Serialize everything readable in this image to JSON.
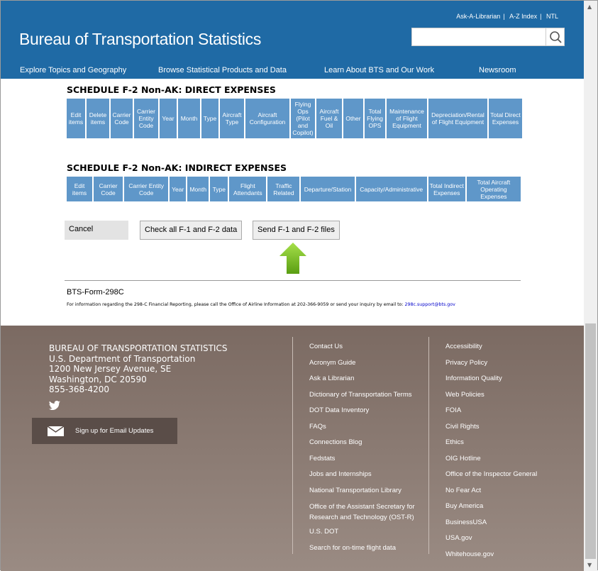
{
  "header": {
    "util_links": [
      "Ask-A-Librarian",
      "A-Z Index",
      "NTL"
    ],
    "logo": "Bureau of Transportation Statistics",
    "search_placeholder": "",
    "nav": [
      "Explore Topics and Geography",
      "Browse Statistical Products and Data",
      "Learn About BTS and Our Work",
      "Newsroom"
    ]
  },
  "direct": {
    "title": "SCHEDULE F-2 Non-AK: DIRECT EXPENSES",
    "columns": [
      "Edit items",
      "Delete items",
      "Carrier Code",
      "Carrier Entity Code",
      "Year",
      "Month",
      "Type",
      "Aircraft Type",
      "Aircraft Configuration",
      "Flying Ops (Pilot and Copilot)",
      "Aircraft Fuel & Oil",
      "Other",
      "Total Flying OPS",
      "Maintenance of Flight Equipment",
      "Depreciation/Rental of Flight Equipment",
      "Total Direct Expenses"
    ]
  },
  "indirect": {
    "title": "SCHEDULE F-2 Non-AK: INDIRECT EXPENSES",
    "columns": [
      "Edit items",
      "Carrier Code",
      "Carrier Entity Code",
      "Year",
      "Month",
      "Type",
      "Flight Attendants",
      "Traffic Related",
      "Departure/Station",
      "Capacity/Administrative",
      "Total Indirect Expenses",
      "Total Aircraft Operating Expenses"
    ]
  },
  "buttons": {
    "cancel": "Cancel",
    "check": "Check all F-1 and F-2 data",
    "send": "Send F-1 and F-2 files"
  },
  "form_id": "BTS-Form-298C",
  "info": {
    "text": "For information regarding the 298-C Financial Reporting, please call the Office of Airline Information at 202-366-9059 or send your inquiry by email to: ",
    "email": "298c.support@bts.gov"
  },
  "footer": {
    "address": [
      "BUREAU OF TRANSPORTATION STATISTICS",
      "U.S. Department of Transportation",
      "1200 New Jersey Avenue, SE",
      "Washington, DC 20590",
      "855-368-4200"
    ],
    "email_signup": "Sign up for Email Updates",
    "col1": [
      "Contact Us",
      "Acronym Guide",
      "Ask a Librarian",
      "Dictionary of Transportation Terms",
      "DOT Data Inventory",
      "FAQs",
      "Connections Blog",
      "Fedstats",
      "Jobs and Internships",
      "National Transportation Library",
      "Office of the Assistant Secretary for Research and Technology (OST-R)",
      "U.S. DOT",
      "Search for on-time flight data"
    ],
    "col2": [
      "Accessibility",
      "Privacy Policy",
      "Information Quality",
      "Web Policies",
      "FOIA",
      "Civil Rights",
      "Ethics",
      "OIG Hotline",
      "Office of the Inspector General",
      "No Fear Act",
      "Buy America",
      "BusinessUSA",
      "USA.gov",
      "Whitehouse.gov"
    ]
  },
  "colors": {
    "header": "#1f6aa5",
    "table_header": "#5f97c9",
    "footer": "#8a7a72",
    "arrow": "#7dc21e"
  }
}
